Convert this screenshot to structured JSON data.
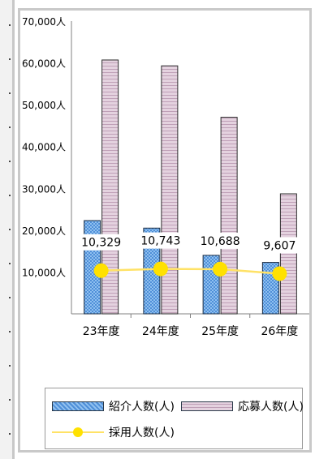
{
  "chart_data": {
    "type": "bar",
    "categories": [
      "23年度",
      "24年度",
      "25年度",
      "26年度"
    ],
    "y_ticks": [
      "70,000人",
      "60,000人",
      "50,000人",
      "40,000人",
      "30,000人",
      "20,000人",
      "10,000人"
    ],
    "ylim": [
      0,
      70000
    ],
    "series": [
      {
        "name": "紹介人数(人)",
        "type": "bar",
        "values": [
          22300,
          20500,
          14000,
          12300
        ],
        "color": "#5b9bd5"
      },
      {
        "name": "応募人数(人)",
        "type": "bar",
        "values": [
          60700,
          59300,
          47000,
          28700
        ],
        "color": "#d9c4d4"
      },
      {
        "name": "採用人数(人)",
        "type": "line",
        "values": [
          10329,
          10743,
          10688,
          9607
        ],
        "labels": [
          "10,329",
          "10,743",
          "10,688",
          "9,607"
        ],
        "color": "#ffe100"
      }
    ],
    "legend_position": "bottom",
    "grid": false
  }
}
